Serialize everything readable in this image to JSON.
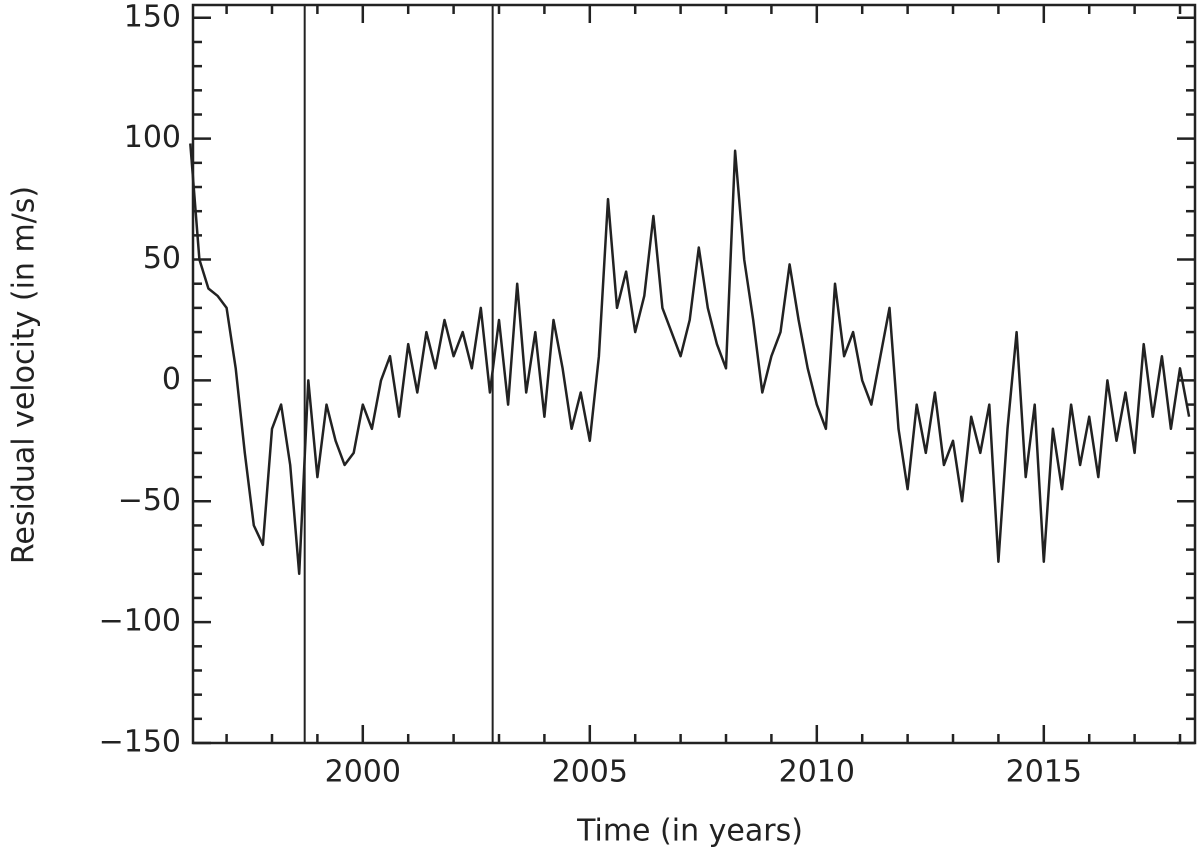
{
  "chart_data": {
    "type": "line",
    "xlabel": "Time (in years)",
    "ylabel": "Residual velocity (in m/s)",
    "color": "#222222",
    "xlim": [
      1996.26,
      2018.33
    ],
    "ylim": [
      -150,
      155.3
    ],
    "xticks": [
      2000,
      2005,
      2010,
      2015
    ],
    "xminorticks": [
      1997,
      1998,
      1999,
      2001,
      2002,
      2003,
      2004,
      2006,
      2007,
      2008,
      2009,
      2011,
      2012,
      2013,
      2014,
      2016,
      2017,
      2018
    ],
    "yticks": [
      {
        "value": -150,
        "label": "−150"
      },
      {
        "value": -100,
        "label": "−100"
      },
      {
        "value": -50,
        "label": "−50"
      },
      0,
      50,
      100,
      150
    ],
    "yminorticks": [
      -140,
      -130,
      -120,
      -110,
      -90,
      -80,
      -70,
      -60,
      -40,
      -30,
      -20,
      -10,
      10,
      20,
      30,
      40,
      60,
      70,
      80,
      90,
      110,
      120,
      130,
      140
    ],
    "vlines": [
      1998.72,
      2002.86
    ],
    "x": [
      1996.2,
      1996.4,
      1996.6,
      1996.8,
      1997.0,
      1997.2,
      1997.4,
      1997.6,
      1997.8,
      1998.0,
      1998.2,
      1998.4,
      1998.6,
      1998.8,
      1999.0,
      1999.2,
      1999.4,
      1999.6,
      1999.8,
      2000.0,
      2000.2,
      2000.4,
      2000.6,
      2000.8,
      2001.0,
      2001.2,
      2001.4,
      2001.6,
      2001.8,
      2002.0,
      2002.2,
      2002.4,
      2002.6,
      2002.8,
      2003.0,
      2003.2,
      2003.4,
      2003.6,
      2003.8,
      2004.0,
      2004.2,
      2004.4,
      2004.6,
      2004.8,
      2005.0,
      2005.2,
      2005.4,
      2005.6,
      2005.8,
      2006.0,
      2006.2,
      2006.4,
      2006.6,
      2006.8,
      2007.0,
      2007.2,
      2007.4,
      2007.6,
      2007.8,
      2008.0,
      2008.2,
      2008.4,
      2008.6,
      2008.8,
      2009.0,
      2009.2,
      2009.4,
      2009.6,
      2009.8,
      2010.0,
      2010.2,
      2010.4,
      2010.6,
      2010.8,
      2011.0,
      2011.2,
      2011.4,
      2011.6,
      2011.8,
      2012.0,
      2012.2,
      2012.4,
      2012.6,
      2012.8,
      2013.0,
      2013.2,
      2013.4,
      2013.6,
      2013.8,
      2014.0,
      2014.2,
      2014.4,
      2014.6,
      2014.8,
      2015.0,
      2015.2,
      2015.4,
      2015.6,
      2015.8,
      2016.0,
      2016.2,
      2016.4,
      2016.6,
      2016.8,
      2017.0,
      2017.2,
      2017.4,
      2017.6,
      2017.8,
      2018.0,
      2018.2
    ],
    "values": [
      98,
      50,
      38,
      35,
      30,
      5,
      -30,
      -60,
      -68,
      -20,
      -10,
      -35,
      -80,
      0,
      -40,
      -10,
      -25,
      -35,
      -30,
      -10,
      -20,
      0,
      10,
      -15,
      15,
      -5,
      20,
      5,
      25,
      10,
      20,
      5,
      30,
      -5,
      25,
      -10,
      40,
      -5,
      20,
      -15,
      25,
      5,
      -20,
      -5,
      -25,
      10,
      75,
      30,
      45,
      20,
      35,
      68,
      30,
      20,
      10,
      25,
      55,
      30,
      15,
      5,
      95,
      50,
      25,
      -5,
      10,
      20,
      48,
      25,
      5,
      -10,
      -20,
      40,
      10,
      20,
      0,
      -10,
      10,
      30,
      -20,
      -45,
      -10,
      -30,
      -5,
      -35,
      -25,
      -50,
      -15,
      -30,
      -10,
      -75,
      -20,
      20,
      -40,
      -10,
      -75,
      -20,
      -45,
      -10,
      -35,
      -15,
      -40,
      0,
      -25,
      -5,
      -30,
      15,
      -15,
      10,
      -20,
      5,
      -15
    ]
  }
}
